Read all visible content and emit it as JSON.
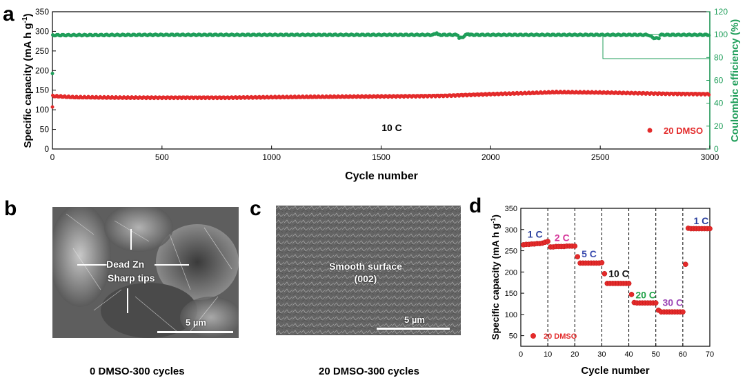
{
  "panels": {
    "a": "a",
    "b": "b",
    "c": "c",
    "d": "d"
  },
  "chart_data": [
    {
      "type": "scatter",
      "panel": "a",
      "xlabel": "Cycle number",
      "ylabel_left_main": "Specific capacity (mA h g",
      "ylabel_left_sup": "-1",
      "ylabel_left_end": ")",
      "ylabel_right": "Coulombic efficiency (%)",
      "xlim": [
        0,
        3000
      ],
      "ylim_left": [
        0,
        350
      ],
      "ylim_right": [
        0,
        120
      ],
      "xticks": [
        0,
        500,
        1000,
        1500,
        2000,
        2500,
        3000
      ],
      "yticks_left": [
        0,
        50,
        100,
        150,
        200,
        250,
        300,
        350
      ],
      "yticks_right": [
        0,
        20,
        40,
        60,
        80,
        100,
        120
      ],
      "annotation": "10 C",
      "legend": "20 DMSO",
      "colors": {
        "capacity": "#e32b2b",
        "efficiency": "#1f9e5a"
      },
      "series": [
        {
          "name": "Specific capacity",
          "axis": "left",
          "x": [
            0,
            100,
            300,
            500,
            800,
            1000,
            1200,
            1500,
            1700,
            1800,
            2000,
            2200,
            2300,
            2500,
            2700,
            2800,
            3000
          ],
          "values": [
            135,
            132,
            131,
            131,
            131,
            132,
            133,
            134,
            135,
            136,
            140,
            143,
            145,
            144,
            142,
            141,
            140
          ]
        },
        {
          "name": "Coulombic efficiency",
          "axis": "right",
          "x": [
            0,
            500,
            1000,
            1500,
            2000,
            2500,
            3000
          ],
          "values": [
            99.5,
            99.8,
            99.8,
            99.8,
            99.8,
            99.8,
            99.8
          ]
        }
      ]
    },
    {
      "type": "scatter",
      "panel": "d",
      "xlabel": "Cycle number",
      "ylabel_main": "Specific capacity (mA h g",
      "ylabel_sup": "-1",
      "ylabel_end": ")",
      "xlim": [
        0,
        70
      ],
      "ylim": [
        25,
        350
      ],
      "xticks": [
        0,
        10,
        20,
        30,
        40,
        50,
        60,
        70
      ],
      "yticks": [
        50,
        100,
        150,
        200,
        250,
        300,
        350
      ],
      "legend": "20 DMSO",
      "rate_labels": [
        {
          "text": "1 C",
          "x": 2.5,
          "y": 281,
          "color": "#2a3f9d"
        },
        {
          "text": "2 C",
          "x": 12.5,
          "y": 273,
          "color": "#d6369a"
        },
        {
          "text": "5 C",
          "x": 22.5,
          "y": 235,
          "color": "#3b4db0"
        },
        {
          "text": "10 C",
          "x": 32.5,
          "y": 188,
          "color": "#111111"
        },
        {
          "text": "20 C",
          "x": 42.5,
          "y": 138,
          "color": "#22a34a"
        },
        {
          "text": "30 C",
          "x": 52.5,
          "y": 120,
          "color": "#9b44b5"
        },
        {
          "text": "1 C",
          "x": 64,
          "y": 313,
          "color": "#2a3f9d"
        }
      ],
      "series": [
        {
          "name": "20 DMSO",
          "x": [
            1,
            2,
            3,
            4,
            5,
            6,
            7,
            8,
            9,
            10,
            11,
            12,
            13,
            14,
            15,
            16,
            17,
            18,
            19,
            20,
            21,
            22,
            23,
            24,
            25,
            26,
            27,
            28,
            29,
            30,
            31,
            32,
            33,
            34,
            35,
            36,
            37,
            38,
            39,
            40,
            41,
            42,
            43,
            44,
            45,
            46,
            47,
            48,
            49,
            50,
            51,
            52,
            53,
            54,
            55,
            56,
            57,
            58,
            59,
            60,
            61,
            62,
            63,
            64,
            65,
            66,
            67,
            68,
            69,
            70
          ],
          "values": [
            264,
            265,
            265,
            266,
            266,
            267,
            267,
            268,
            270,
            272,
            259,
            259,
            260,
            260,
            260,
            260,
            261,
            261,
            261,
            261,
            236,
            221,
            221,
            221,
            221,
            221,
            221,
            221,
            221,
            222,
            196,
            173,
            173,
            173,
            173,
            173,
            173,
            173,
            173,
            173,
            147,
            128,
            127,
            127,
            127,
            127,
            127,
            127,
            127,
            127,
            110,
            106,
            106,
            106,
            106,
            106,
            106,
            106,
            106,
            106,
            218,
            303,
            302,
            302,
            302,
            302,
            302,
            302,
            302,
            302
          ]
        }
      ]
    }
  ],
  "sem_b": {
    "label_line1": "Dead Zn",
    "label_line2": "Sharp tips",
    "scale": "5 µm",
    "caption": "0 DMSO-300 cycles"
  },
  "sem_c": {
    "label_line1": "Smooth surface",
    "label_line2": "(002)",
    "scale": "5 µm",
    "caption": "20 DMSO-300 cycles"
  }
}
